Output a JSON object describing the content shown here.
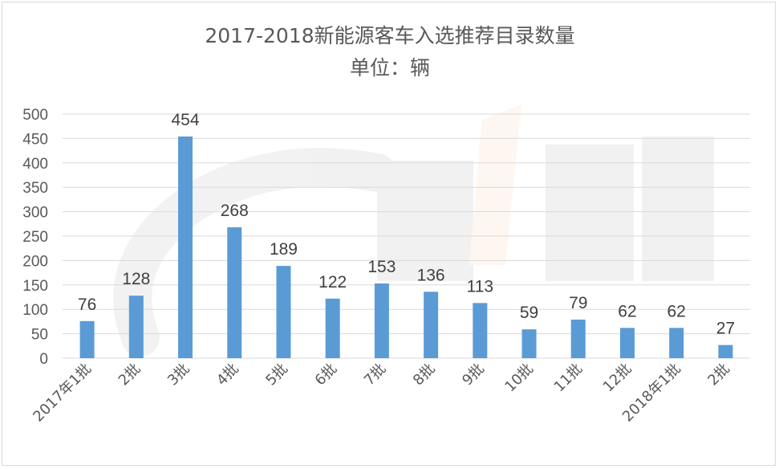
{
  "chart_data": {
    "type": "bar",
    "title": "2017-2018新能源客车入选推荐目录数量",
    "subtitle": "单位：辆",
    "categories": [
      "2017年1批",
      "2批",
      "3批",
      "4批",
      "5批",
      "6批",
      "7批",
      "8批",
      "9批",
      "10批",
      "11批",
      "12批",
      "2018年1批",
      "2批"
    ],
    "values": [
      76,
      128,
      454,
      268,
      189,
      122,
      153,
      136,
      113,
      59,
      79,
      62,
      62,
      27
    ],
    "ylim": [
      0,
      500
    ],
    "yticks": [
      "0",
      "50",
      "100",
      "150",
      "200",
      "250",
      "300",
      "350",
      "400",
      "450",
      "500"
    ],
    "grid": true,
    "legend": "none",
    "bar_color": "#5b9bd5"
  }
}
